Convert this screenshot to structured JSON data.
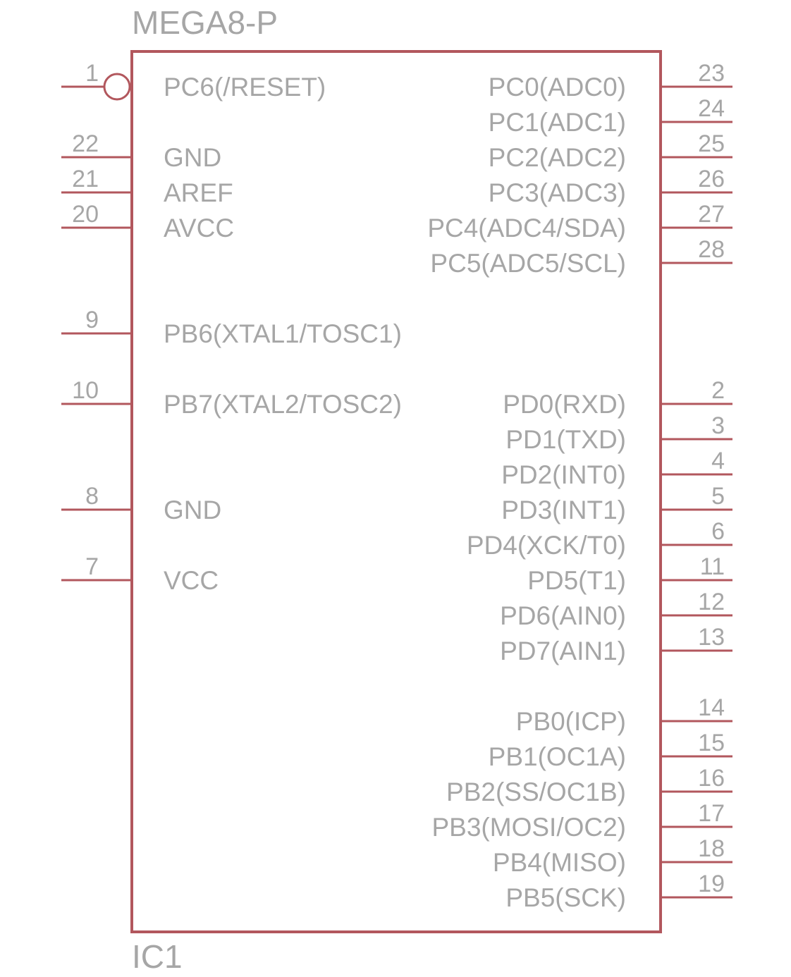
{
  "part_name": "MEGA8-P",
  "ref_designator": "IC1",
  "pins": {
    "left": [
      {
        "num": "1",
        "label": "PC6(/RESET)",
        "inverted": true
      },
      {
        "num": "22",
        "label": "GND"
      },
      {
        "num": "21",
        "label": "AREF"
      },
      {
        "num": "20",
        "label": "AVCC"
      },
      {
        "num": "9",
        "label": "PB6(XTAL1/TOSC1)"
      },
      {
        "num": "10",
        "label": "PB7(XTAL2/TOSC2)"
      },
      {
        "num": "8",
        "label": "GND"
      },
      {
        "num": "7",
        "label": "VCC"
      }
    ],
    "right": [
      {
        "num": "23",
        "label": "PC0(ADC0)"
      },
      {
        "num": "24",
        "label": "PC1(ADC1)"
      },
      {
        "num": "25",
        "label": "PC2(ADC2)"
      },
      {
        "num": "26",
        "label": "PC3(ADC3)"
      },
      {
        "num": "27",
        "label": "PC4(ADC4/SDA)"
      },
      {
        "num": "28",
        "label": "PC5(ADC5/SCL)"
      },
      {
        "num": "2",
        "label": "PD0(RXD)"
      },
      {
        "num": "3",
        "label": "PD1(TXD)"
      },
      {
        "num": "4",
        "label": "PD2(INT0)"
      },
      {
        "num": "5",
        "label": "PD3(INT1)"
      },
      {
        "num": "6",
        "label": "PD4(XCK/T0)"
      },
      {
        "num": "11",
        "label": "PD5(T1)"
      },
      {
        "num": "12",
        "label": "PD6(AIN0)"
      },
      {
        "num": "13",
        "label": "PD7(AIN1)"
      },
      {
        "num": "14",
        "label": "PB0(ICP)"
      },
      {
        "num": "15",
        "label": "PB1(OC1A)"
      },
      {
        "num": "16",
        "label": "PB2(SS/OC1B)"
      },
      {
        "num": "17",
        "label": "PB3(MOSI/OC2)"
      },
      {
        "num": "18",
        "label": "PB4(MISO)"
      },
      {
        "num": "19",
        "label": "PB5(SCK)"
      }
    ]
  },
  "colors": {
    "outline": "#b2575d",
    "text": "#a6a6a6",
    "background": "#ffffff"
  }
}
